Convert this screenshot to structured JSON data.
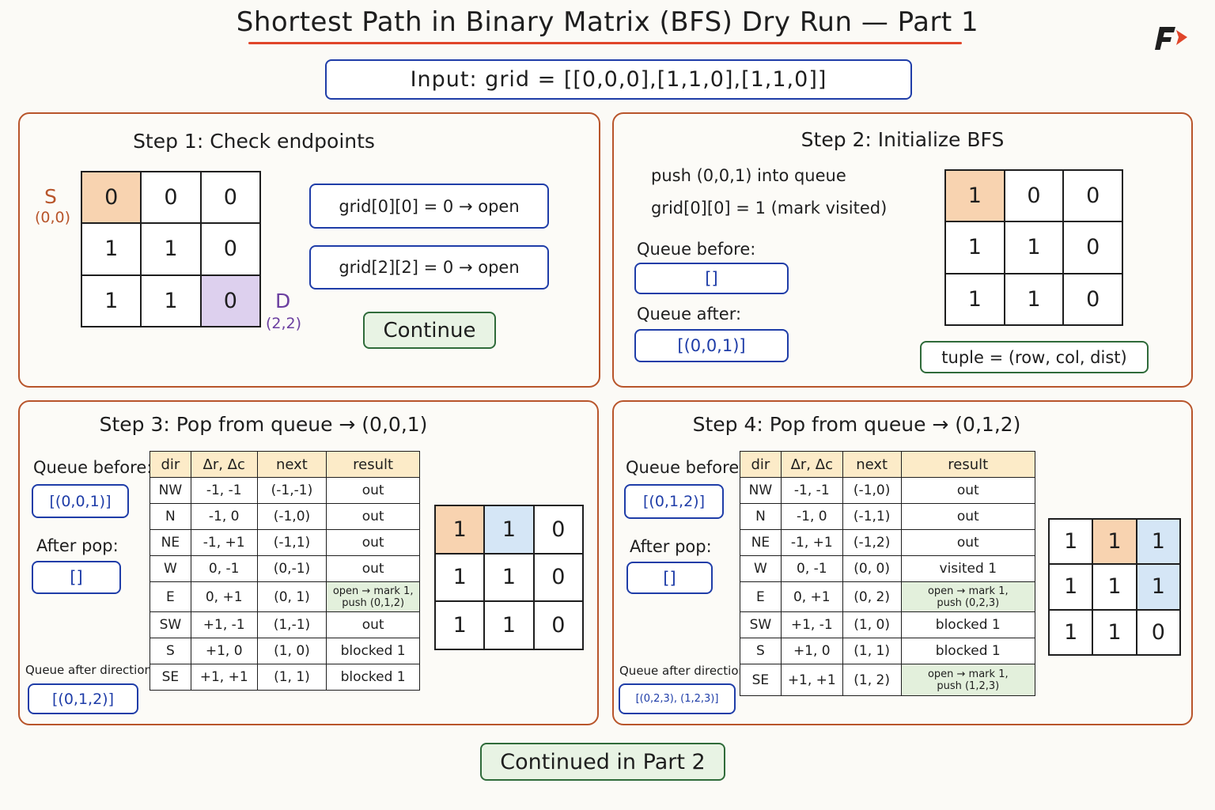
{
  "title": "Shortest Path in Binary Matrix (BFS) Dry Run — Part 1",
  "logo": "F",
  "input_text": "Input:  grid = [[0,0,0],[1,1,0],[1,1,0]]",
  "colors": {
    "panel_border": "#b8552b",
    "title_underline": "#e0452a",
    "blue_border": "#1f3da8",
    "green_border": "#2f6b3a",
    "start_cell": "#f8d3b0",
    "dest_cell": "#ddd0ee",
    "current_cell": "#d5e6f6",
    "table_header": "#fcebc8"
  },
  "step1": {
    "title": "Step 1:  Check endpoints",
    "start_label": "S",
    "start_coord": "(0,0)",
    "dest_label": "D",
    "dest_coord": "(2,2)",
    "grid": [
      [
        "0",
        "0",
        "0"
      ],
      [
        "1",
        "1",
        "0"
      ],
      [
        "1",
        "1",
        "0"
      ]
    ],
    "check1": "grid[0][0]  =  0  →  open",
    "check2": "grid[2][2]  =  0  →  open",
    "continue": "Continue"
  },
  "step2": {
    "title": "Step 2:  Initialize  BFS",
    "line1": "push  (0,0,1)  into  queue",
    "line2": "grid[0][0]  =  1  (mark visited)",
    "queue_before_label": "Queue before:",
    "queue_before": "[]",
    "queue_after_label": "Queue after:",
    "queue_after": "[(0,0,1)]",
    "grid": [
      [
        "1",
        "0",
        "0"
      ],
      [
        "1",
        "1",
        "0"
      ],
      [
        "1",
        "1",
        "0"
      ]
    ],
    "tuple_note": "tuple  =  (row, col, dist)"
  },
  "step3": {
    "title": "Step 3:  Pop  from  queue  →  (0,0,1)",
    "queue_before_label": "Queue before:",
    "queue_before": "[(0,0,1)]",
    "after_pop_label": "After pop:",
    "after_pop": "[]",
    "queue_after_label": "Queue after directions:",
    "queue_after": "[(0,1,2)]",
    "headers": [
      "dir",
      "Δr, Δc",
      "next",
      "result"
    ],
    "rows": [
      {
        "dir": "NW",
        "d": "-1, -1",
        "next": "(-1,-1)",
        "result": "out"
      },
      {
        "dir": "N",
        "d": "-1, 0",
        "next": "(-1,0)",
        "result": "out"
      },
      {
        "dir": "NE",
        "d": "-1, +1",
        "next": "(-1,1)",
        "result": "out"
      },
      {
        "dir": "W",
        "d": "0, -1",
        "next": "(0,-1)",
        "result": "out"
      },
      {
        "dir": "E",
        "d": "0, +1",
        "next": "(0, 1)",
        "result": "open → mark 1,\npush  (0,1,2)"
      },
      {
        "dir": "SW",
        "d": "+1, -1",
        "next": "(1,-1)",
        "result": "out"
      },
      {
        "dir": "S",
        "d": "+1, 0",
        "next": "(1, 0)",
        "result": "blocked  1"
      },
      {
        "dir": "SE",
        "d": "+1, +1",
        "next": "(1, 1)",
        "result": "blocked  1"
      }
    ],
    "grid": [
      [
        "1",
        "1",
        "0"
      ],
      [
        "1",
        "1",
        "0"
      ],
      [
        "1",
        "1",
        "0"
      ]
    ]
  },
  "step4": {
    "title": "Step 4:  Pop  from  queue  →  (0,1,2)",
    "queue_before_label": "Queue before:",
    "queue_before": "[(0,1,2)]",
    "after_pop_label": "After pop:",
    "after_pop": "[]",
    "queue_after_label": "Queue after directions:",
    "queue_after": "[(0,2,3), (1,2,3)]",
    "headers": [
      "dir",
      "Δr, Δc",
      "next",
      "result"
    ],
    "rows": [
      {
        "dir": "NW",
        "d": "-1, -1",
        "next": "(-1,0)",
        "result": "out"
      },
      {
        "dir": "N",
        "d": "-1, 0",
        "next": "(-1,1)",
        "result": "out"
      },
      {
        "dir": "NE",
        "d": "-1, +1",
        "next": "(-1,2)",
        "result": "out"
      },
      {
        "dir": "W",
        "d": "0, -1",
        "next": "(0, 0)",
        "result": "visited  1"
      },
      {
        "dir": "E",
        "d": "0, +1",
        "next": "(0, 2)",
        "result": "open → mark 1,\npush  (0,2,3)"
      },
      {
        "dir": "SW",
        "d": "+1, -1",
        "next": "(1, 0)",
        "result": "blocked  1"
      },
      {
        "dir": "S",
        "d": "+1, 0",
        "next": "(1, 1)",
        "result": "blocked  1"
      },
      {
        "dir": "SE",
        "d": "+1, +1",
        "next": "(1, 2)",
        "result": "open → mark 1,\npush  (1,2,3)"
      }
    ],
    "grid": [
      [
        "1",
        "1",
        "1"
      ],
      [
        "1",
        "1",
        "1"
      ],
      [
        "1",
        "1",
        "0"
      ]
    ]
  },
  "footer": "Continued  in  Part  2"
}
